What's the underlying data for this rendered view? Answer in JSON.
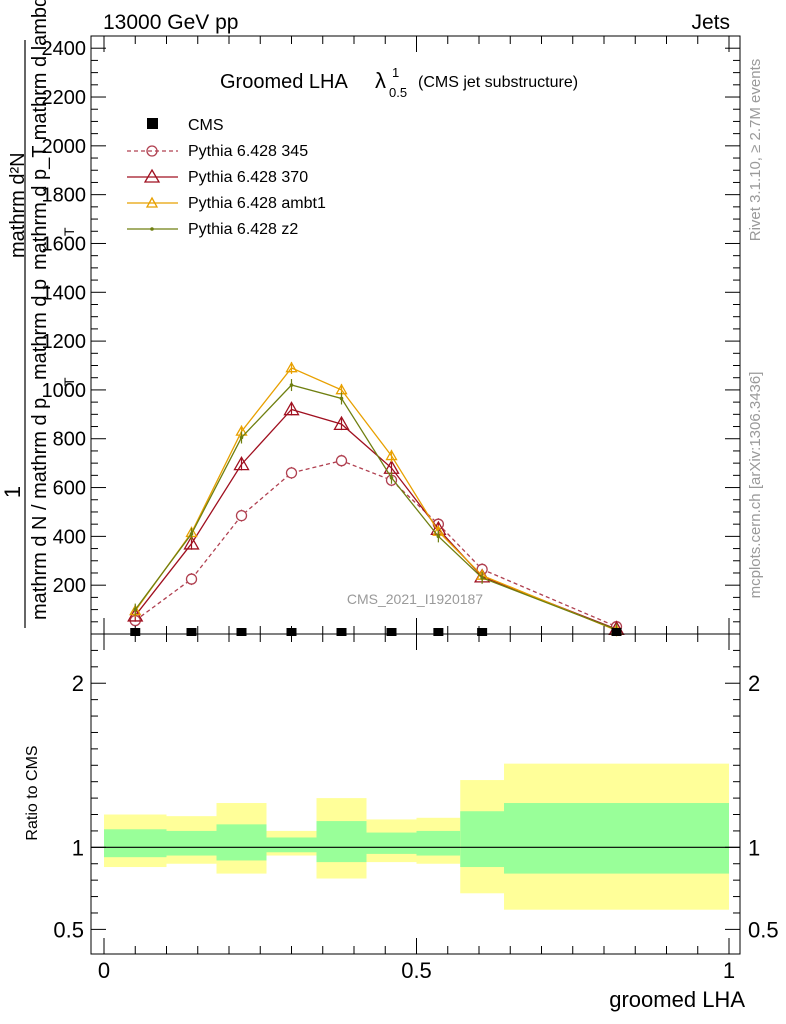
{
  "header": {
    "left": "13000 GeV pp",
    "right": "Jets"
  },
  "side_text": {
    "top": "Rivet 3.1.10, ≥ 2.7M events",
    "bottom": "mcplots.cern.ch [arXiv:1306.3436]"
  },
  "watermark": "CMS_2021_I1920187",
  "chart_data": [
    {
      "type": "line",
      "title_main": "Groomed LHA",
      "title_lambda": "λ",
      "title_sup": "1",
      "title_sub": "0.5",
      "title_note": "(CMS jet substructure)",
      "ylabel": {
        "numerator": "1",
        "denominator": "mathrm d N / mathrm d p_T",
        "fraction_top": "mathrm d^2N",
        "fraction_bottom": "mathrm d p_T mathrm d lambda",
        "overlap_a": "mathrm d²N",
        "overlap_b": "mathrm d p_T mathrm d lambda",
        "sub_T": "T",
        "overlap_c": "mathrm d N / mathrm d p",
        "overlap_d": "mathrm d p",
        "sub_T2": "T",
        "overlap_e": "mathrm d lambda"
      },
      "xlim": [
        0,
        1
      ],
      "ylim": [
        0,
        2450
      ],
      "yticks": [
        {
          "v": 200,
          "label": "200"
        },
        {
          "v": 400,
          "label": "400"
        },
        {
          "v": 600,
          "label": "600"
        },
        {
          "v": 800,
          "label": "800"
        },
        {
          "v": 1000,
          "label": "1000"
        },
        {
          "v": 1200,
          "label": "1200"
        },
        {
          "v": 1400,
          "label": "1400"
        },
        {
          "v": 1600,
          "label": "1600"
        },
        {
          "v": 1800,
          "label": "1800"
        },
        {
          "v": 2000,
          "label": "2000"
        },
        {
          "v": 2200,
          "label": "2200"
        },
        {
          "v": 2400,
          "label": "2400"
        }
      ],
      "legend_position": "top-left",
      "data_points": {
        "name": "CMS",
        "x": [
          0.05,
          0.14,
          0.22,
          0.3,
          0.38,
          0.46,
          0.535,
          0.605,
          0.82
        ],
        "y": [
          0,
          0,
          0,
          0,
          0,
          0,
          0,
          0,
          0
        ]
      },
      "series": [
        {
          "name": "Pythia 6.428 345",
          "color": "#b04050",
          "dash": true,
          "marker": "circle",
          "x": [
            0.05,
            0.14,
            0.22,
            0.3,
            0.38,
            0.46,
            0.535,
            0.605,
            0.82
          ],
          "y": [
            55,
            225,
            485,
            660,
            710,
            630,
            450,
            265,
            30
          ]
        },
        {
          "name": "Pythia 6.428 370",
          "color": "#a01020",
          "dash": false,
          "marker": "triangle",
          "x": [
            0.05,
            0.14,
            0.22,
            0.3,
            0.38,
            0.46,
            0.535,
            0.605,
            0.82
          ],
          "y": [
            75,
            370,
            695,
            920,
            860,
            680,
            430,
            235,
            20
          ]
        },
        {
          "name": "Pythia 6.428 ambt1",
          "color": "#e8a000",
          "dash": false,
          "marker": "triangle",
          "x": [
            0.05,
            0.14,
            0.22,
            0.3,
            0.38,
            0.46,
            0.535,
            0.605,
            0.82
          ],
          "y": [
            95,
            415,
            830,
            1090,
            1000,
            730,
            420,
            240,
            15
          ]
        },
        {
          "name": "Pythia 6.428 z2",
          "color": "#6f7f10",
          "dash": false,
          "marker": "dot",
          "x": [
            0.05,
            0.14,
            0.22,
            0.3,
            0.38,
            0.46,
            0.535,
            0.605,
            0.82
          ],
          "y": [
            100,
            410,
            805,
            1020,
            965,
            640,
            400,
            230,
            18
          ]
        }
      ]
    },
    {
      "type": "area",
      "ylabel": "Ratio to CMS",
      "xlabel": "groomed LHA",
      "xlim": [
        0,
        1
      ],
      "ylim": [
        0.35,
        2.3
      ],
      "yticks": [
        {
          "v": 0.5,
          "label": "0.5"
        },
        {
          "v": 1,
          "label": "1"
        },
        {
          "v": 2,
          "label": "2"
        }
      ],
      "xticks": [
        {
          "v": 0,
          "label": "0"
        },
        {
          "v": 0.5,
          "label": "0.5"
        },
        {
          "v": 1,
          "label": "1"
        }
      ],
      "band_colors": {
        "outer": "#ffff99",
        "inner": "#99ff99"
      },
      "bins": [
        {
          "x0": 0.0,
          "x1": 0.1,
          "outer": [
            0.88,
            1.2
          ],
          "inner": [
            0.94,
            1.11
          ]
        },
        {
          "x0": 0.1,
          "x1": 0.18,
          "outer": [
            0.9,
            1.19
          ],
          "inner": [
            0.95,
            1.1
          ]
        },
        {
          "x0": 0.18,
          "x1": 0.26,
          "outer": [
            0.84,
            1.27
          ],
          "inner": [
            0.92,
            1.14
          ]
        },
        {
          "x0": 0.26,
          "x1": 0.34,
          "outer": [
            0.95,
            1.1
          ],
          "inner": [
            0.97,
            1.06
          ]
        },
        {
          "x0": 0.34,
          "x1": 0.42,
          "outer": [
            0.81,
            1.3
          ],
          "inner": [
            0.91,
            1.16
          ]
        },
        {
          "x0": 0.42,
          "x1": 0.5,
          "outer": [
            0.91,
            1.17
          ],
          "inner": [
            0.96,
            1.09
          ]
        },
        {
          "x0": 0.5,
          "x1": 0.57,
          "outer": [
            0.9,
            1.18
          ],
          "inner": [
            0.95,
            1.1
          ]
        },
        {
          "x0": 0.57,
          "x1": 0.64,
          "outer": [
            0.72,
            1.41
          ],
          "inner": [
            0.88,
            1.22
          ]
        },
        {
          "x0": 0.64,
          "x1": 1.0,
          "outer": [
            0.62,
            1.51
          ],
          "inner": [
            0.84,
            1.27
          ]
        }
      ]
    }
  ]
}
